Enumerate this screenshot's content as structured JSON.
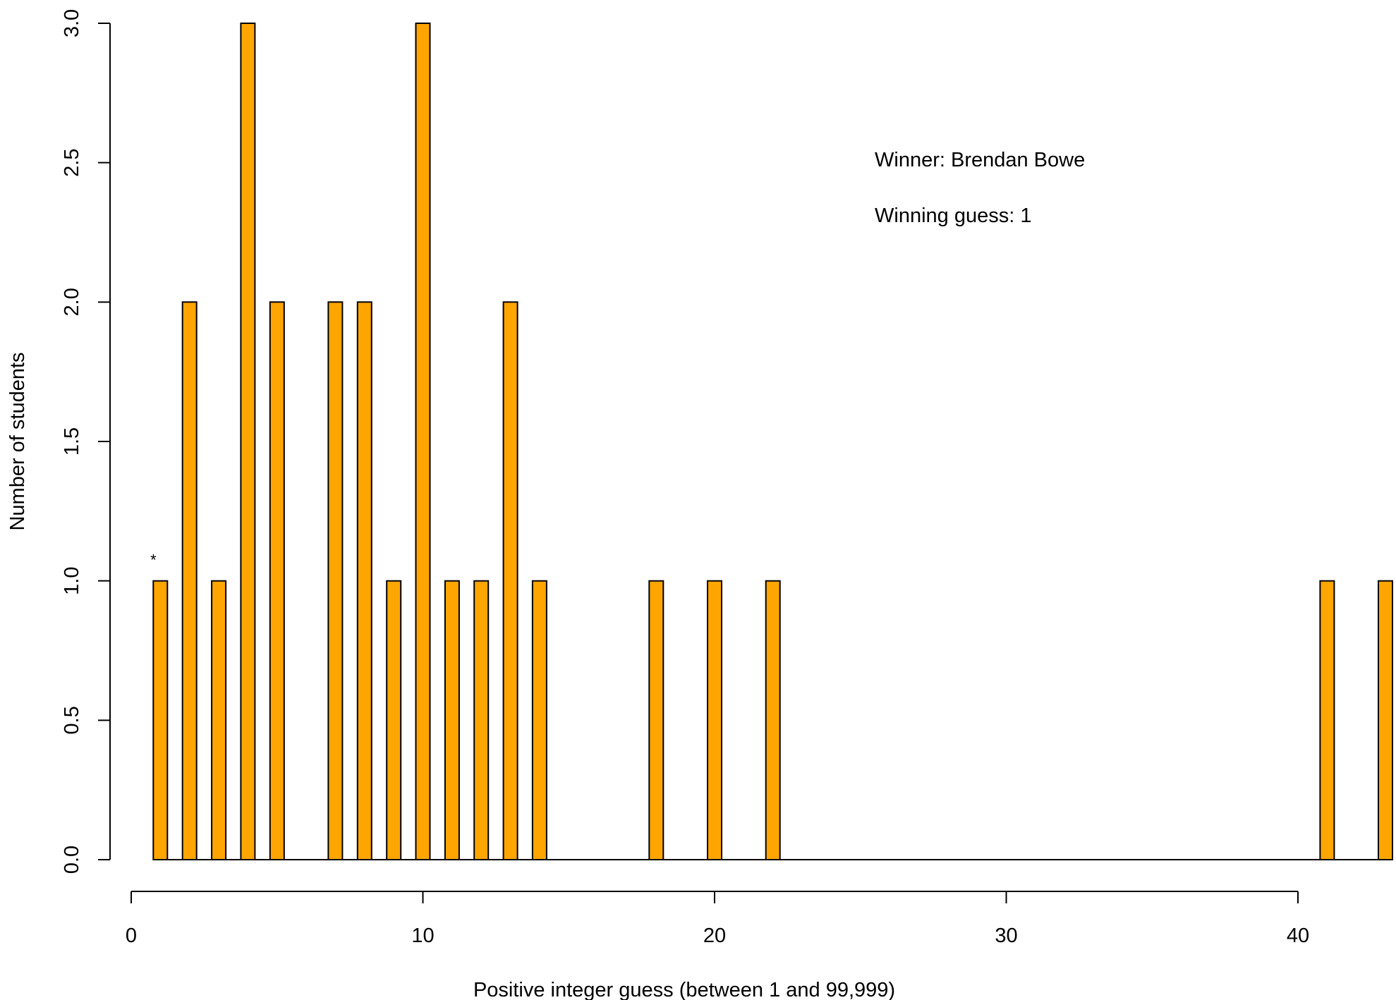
{
  "chart_data": {
    "type": "bar",
    "xlabel": "Positive integer guess (between 1 and 99,999)",
    "ylabel": "Number of students",
    "xlim": [
      0,
      43
    ],
    "ylim": [
      0,
      3
    ],
    "x_ticks": [
      0,
      10,
      20,
      30,
      40
    ],
    "y_ticks": [
      "0.0",
      "0.5",
      "1.0",
      "1.5",
      "2.0",
      "2.5",
      "3.0"
    ],
    "series": [
      {
        "x": [
          1,
          2,
          3,
          4,
          5,
          7,
          8,
          9,
          10,
          11,
          12,
          13,
          14,
          18,
          20,
          22,
          41,
          43
        ],
        "values": [
          1,
          2,
          1,
          3,
          2,
          2,
          2,
          1,
          3,
          1,
          1,
          2,
          1,
          1,
          1,
          1,
          1,
          1
        ]
      }
    ],
    "bar_color": "#FFA500",
    "winner_marker": "*",
    "winner_x": 1,
    "annotations": [
      "Winner: Brendan Bowe",
      "Winning guess: 1"
    ],
    "grid": false
  }
}
